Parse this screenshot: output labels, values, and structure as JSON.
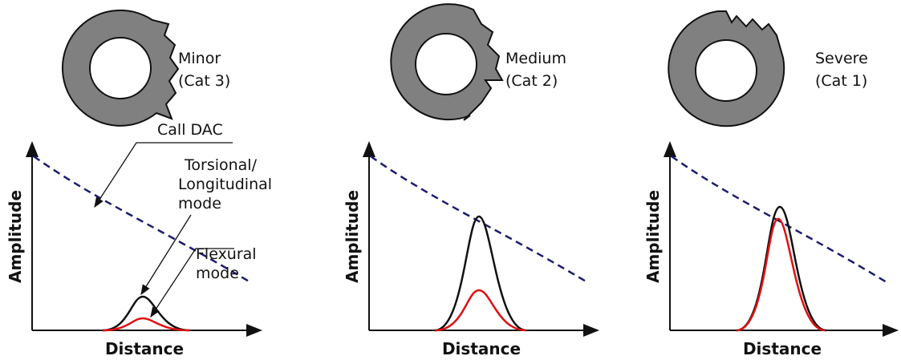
{
  "panels": [
    {
      "severity": "Minor",
      "category": "(Cat 3)",
      "y_axis_label": "Amplitude",
      "x_axis_label": "Distance"
    },
    {
      "severity": "Medium",
      "category": "(Cat 2)",
      "y_axis_label": "Amplitude",
      "x_axis_label": "Distance"
    },
    {
      "severity": "Severe",
      "category": "(Cat 1)",
      "y_axis_label": "Amplitude",
      "x_axis_label": "Distance"
    }
  ],
  "annotations": {
    "dac": "Call DAC",
    "torsional": [
      "Torsional/",
      "Longitudinal",
      "mode"
    ],
    "flexural": [
      "Flexural",
      "mode"
    ]
  }
}
